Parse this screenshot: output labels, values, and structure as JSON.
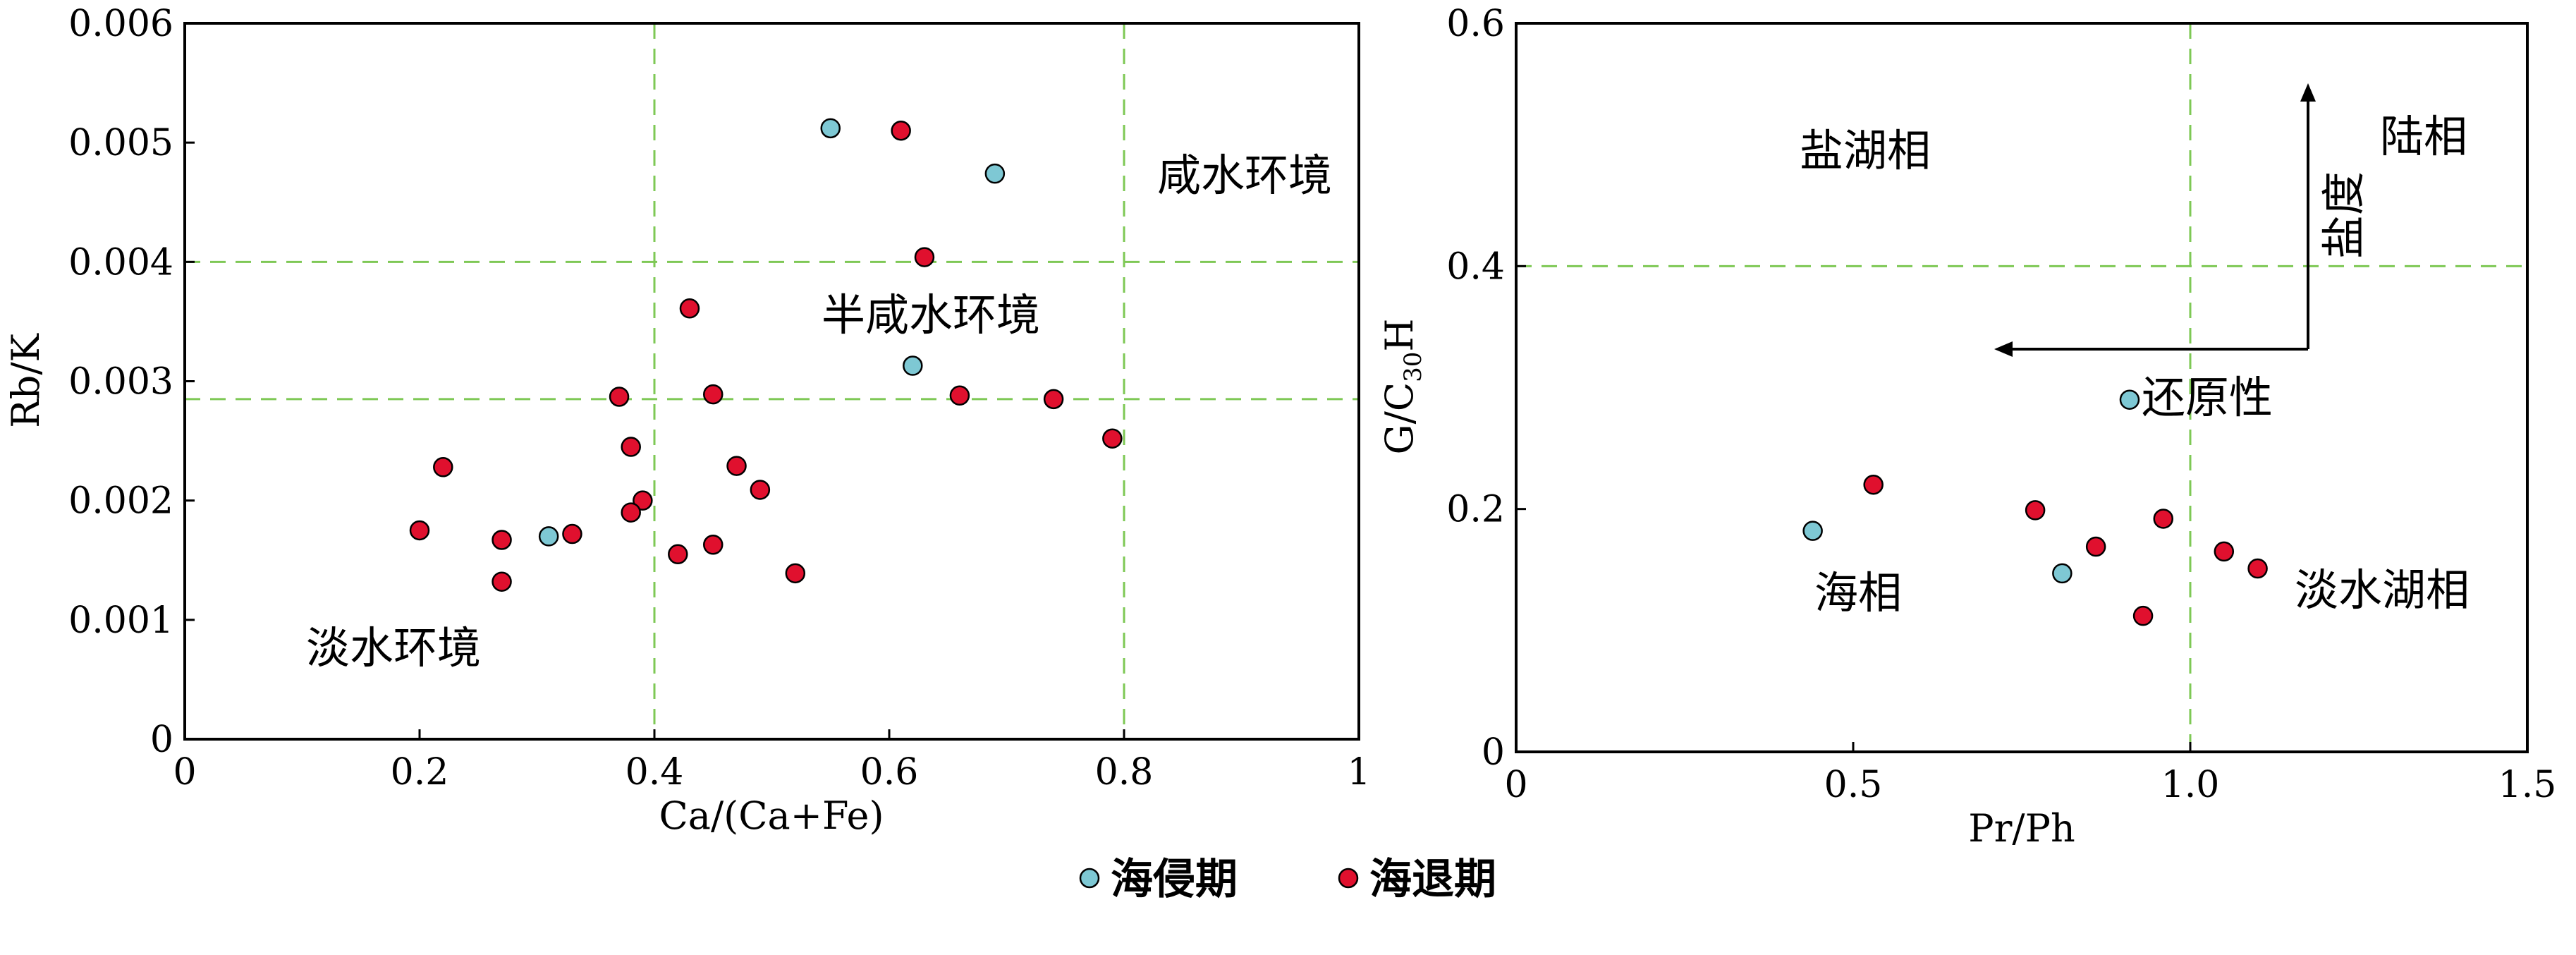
{
  "colors": {
    "transgression": "#7ec8d4",
    "regression": "#e0102e",
    "guide_line": "#7ec855",
    "frame": "#000000"
  },
  "legend": [
    {
      "label": "海侵期",
      "color_key": "transgression"
    },
    {
      "label": "海退期",
      "color_key": "regression"
    }
  ],
  "chart_data": [
    {
      "type": "scatter",
      "xlabel": "Ca/(Ca+Fe)",
      "ylabel": "Rb/K",
      "xlim": [
        0,
        1
      ],
      "ylim": [
        0,
        0.006
      ],
      "x_ticks": [
        "0",
        "0.2",
        "0.4",
        "0.6",
        "0.8",
        "1"
      ],
      "y_ticks": [
        "0",
        "0.001",
        "0.002",
        "0.003",
        "0.004",
        "0.005",
        "0.006"
      ],
      "grid": false,
      "guide_lines": {
        "x": [
          0.4,
          0.8
        ],
        "y": [
          0.004,
          0.00285
        ]
      },
      "regions": [
        "咸水环境",
        "半咸水环境",
        "淡水环境"
      ],
      "series": [
        {
          "name": "海侵期",
          "color_key": "transgression",
          "points": [
            [
              0.55,
              0.00512
            ],
            [
              0.69,
              0.00474
            ],
            [
              0.62,
              0.00313
            ],
            [
              0.31,
              0.0017
            ]
          ]
        },
        {
          "name": "海退期",
          "color_key": "regression",
          "points": [
            [
              0.61,
              0.0051
            ],
            [
              0.63,
              0.00404
            ],
            [
              0.43,
              0.00361
            ],
            [
              0.37,
              0.00287
            ],
            [
              0.45,
              0.00289
            ],
            [
              0.66,
              0.00288
            ],
            [
              0.74,
              0.00285
            ],
            [
              0.79,
              0.00252
            ],
            [
              0.38,
              0.00245
            ],
            [
              0.47,
              0.00229
            ],
            [
              0.22,
              0.00228
            ],
            [
              0.49,
              0.00209
            ],
            [
              0.39,
              0.002
            ],
            [
              0.38,
              0.0019
            ],
            [
              0.2,
              0.00175
            ],
            [
              0.33,
              0.00172
            ],
            [
              0.27,
              0.00167
            ],
            [
              0.45,
              0.00163
            ],
            [
              0.42,
              0.00155
            ],
            [
              0.52,
              0.00139
            ],
            [
              0.27,
              0.00132
            ]
          ]
        }
      ]
    },
    {
      "type": "scatter",
      "xlabel": "Pr/Ph",
      "ylabel": "G/C",
      "ylabel_sub": "30",
      "ylabel_tail": "H",
      "xlim": [
        0,
        1.5
      ],
      "ylim": [
        0,
        0.6
      ],
      "x_ticks": [
        "0",
        "0.5",
        "1.0",
        "1.5"
      ],
      "y_ticks": [
        "0",
        "0.2",
        "0.4",
        "0.6"
      ],
      "grid": false,
      "guide_lines": {
        "x": [
          1.0
        ],
        "y": [
          0.4
        ]
      },
      "regions": [
        "盐湖相",
        "陆相",
        "海相",
        "淡水湖相",
        "还原性",
        "盐度"
      ],
      "series": [
        {
          "name": "海侵期",
          "color_key": "transgression",
          "points": [
            [
              0.91,
              0.29
            ],
            [
              0.44,
              0.182
            ],
            [
              0.81,
              0.147
            ]
          ]
        },
        {
          "name": "海退期",
          "color_key": "regression",
          "points": [
            [
              0.53,
              0.22
            ],
            [
              0.77,
              0.199
            ],
            [
              0.96,
              0.192
            ],
            [
              0.86,
              0.169
            ],
            [
              1.05,
              0.165
            ],
            [
              1.1,
              0.151
            ],
            [
              0.93,
              0.112
            ]
          ]
        }
      ]
    }
  ]
}
